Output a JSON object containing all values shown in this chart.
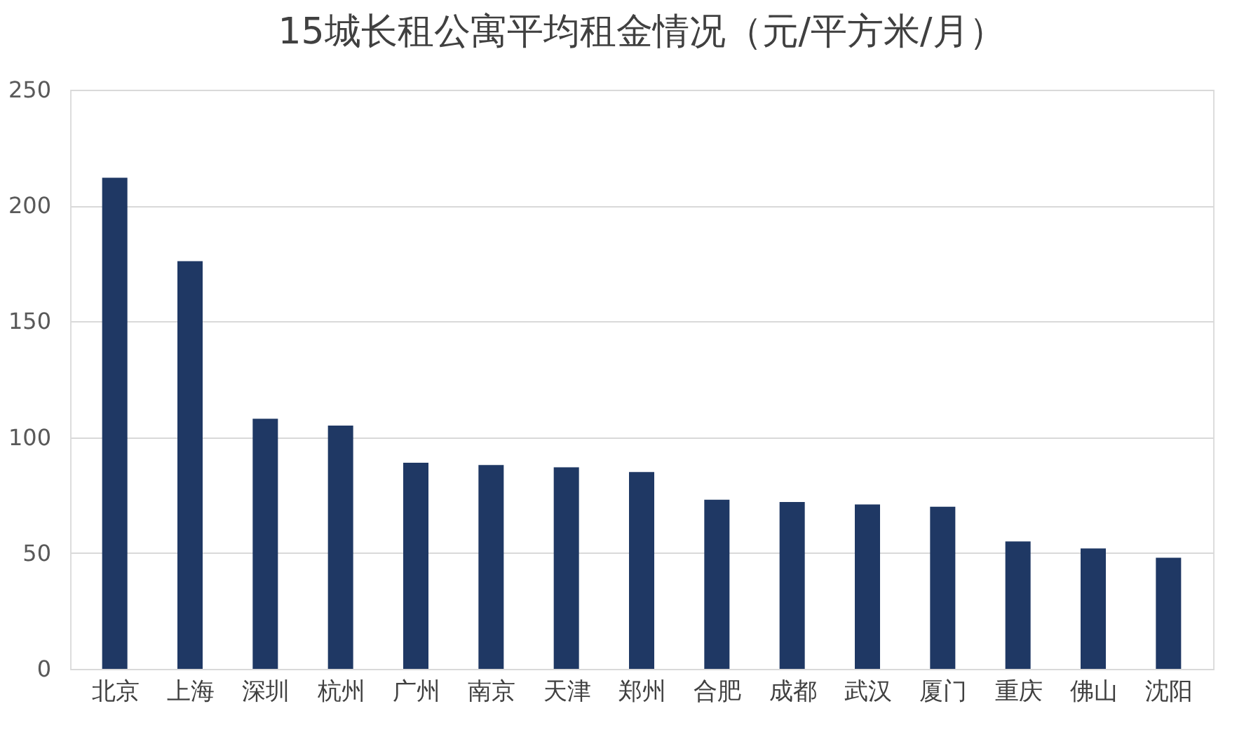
{
  "chart_data": {
    "type": "bar",
    "title": "15城长租公寓平均租金情况（元/平方米/月）",
    "categories": [
      "北京",
      "上海",
      "深圳",
      "杭州",
      "广州",
      "南京",
      "天津",
      "郑州",
      "合肥",
      "成都",
      "武汉",
      "厦门",
      "重庆",
      "佛山",
      "沈阳"
    ],
    "values": [
      212,
      176,
      108,
      105,
      89,
      88,
      87,
      85,
      73,
      72,
      71,
      70,
      55,
      52,
      48
    ],
    "color": "#1f3864",
    "ylim": [
      0,
      250
    ],
    "yticks": [
      0,
      50,
      100,
      150,
      200,
      250
    ],
    "grid": "y"
  }
}
